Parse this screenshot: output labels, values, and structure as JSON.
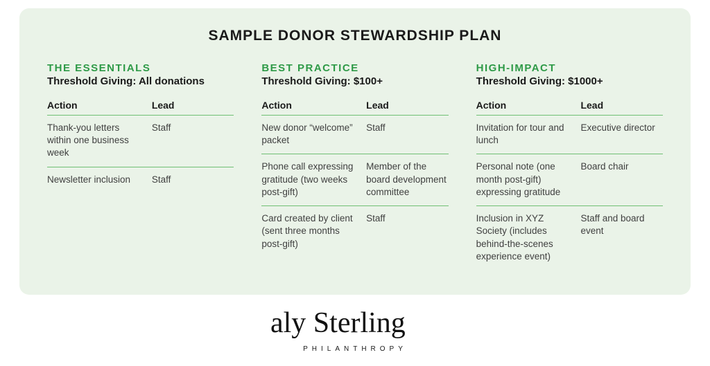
{
  "title": "SAMPLE DONOR STEWARDSHIP PLAN",
  "colors": {
    "card_bg": "#eaf3e8",
    "accent_green": "#2e9a47",
    "rule": "#6fbf73",
    "heading_text": "#1a1a1a",
    "body_text": "#404040"
  },
  "table_headers": {
    "action": "Action",
    "lead": "Lead"
  },
  "columns": [
    {
      "heading": "THE ESSENTIALS",
      "threshold": "Threshold Giving: All donations",
      "rows": [
        {
          "action": "Thank-you letters within one business week",
          "lead": "Staff"
        },
        {
          "action": "Newsletter inclusion",
          "lead": "Staff"
        }
      ]
    },
    {
      "heading": "BEST PRACTICE",
      "threshold": "Threshold Giving: $100+",
      "rows": [
        {
          "action": "New donor “welcome” packet",
          "lead": "Staff"
        },
        {
          "action": "Phone call expressing gratitude (two weeks post-gift)",
          "lead": "Member of the board development committee"
        },
        {
          "action": "Card created by client (sent three months post-gift)",
          "lead": "Staff"
        }
      ]
    },
    {
      "heading": "HIGH-IMPACT",
      "threshold": "Threshold Giving: $1000+",
      "rows": [
        {
          "action": "Invitation for tour and lunch",
          "lead": "Executive director"
        },
        {
          "action": "Personal note (one month post-gift) expressing gratitude",
          "lead": "Board chair"
        },
        {
          "action": "Inclusion in XYZ Society (includes behind-the-scenes experience event)",
          "lead": "Staff and board event"
        }
      ]
    }
  ],
  "logo": {
    "script": "aly Sterling",
    "sub": "PHILANTHROPY"
  }
}
